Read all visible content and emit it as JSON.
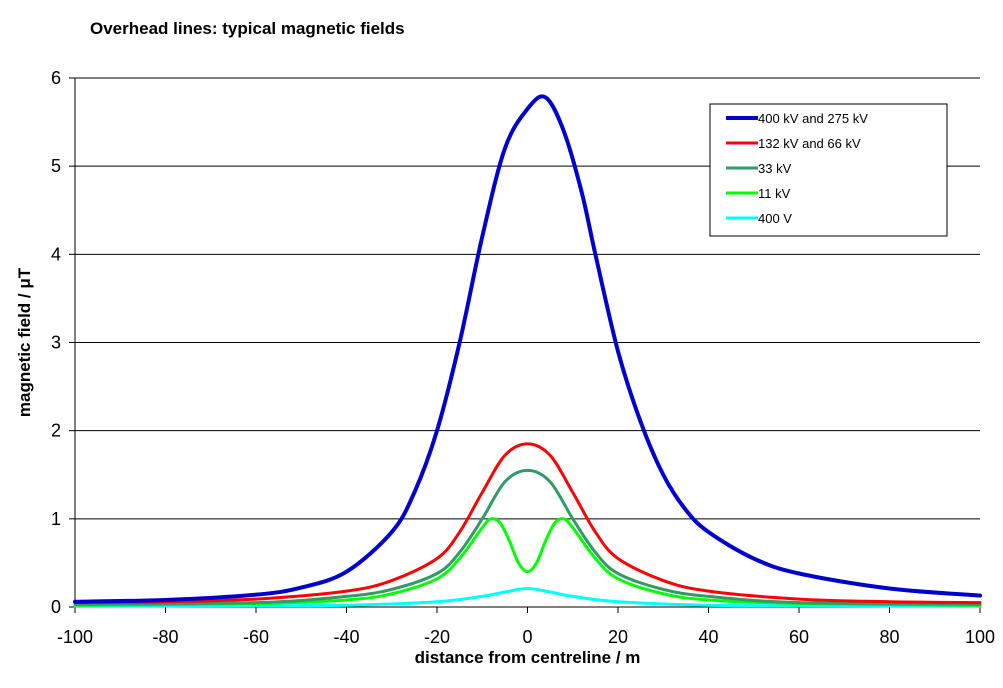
{
  "chart_data": {
    "type": "line",
    "title": "Overhead lines: typical magnetic fields",
    "xlabel": "distance from centreline / m",
    "ylabel": "magnetic field / μT",
    "xlim": [
      -100,
      100
    ],
    "ylim": [
      0,
      6
    ],
    "xticks": [
      -100,
      -80,
      -60,
      -40,
      -20,
      0,
      20,
      40,
      60,
      80,
      100
    ],
    "yticks": [
      0,
      1,
      2,
      3,
      4,
      5,
      6
    ],
    "grid": "horizontal",
    "legend_position": "top-right",
    "series": [
      {
        "name": "400 kV and 275 kV",
        "color": "#0000cc",
        "x": [
          -100,
          -80,
          -60,
          -50,
          -40,
          -30,
          -25,
          -20,
          -15,
          -10,
          -5,
          0,
          4,
          8,
          12,
          15,
          20,
          25,
          30,
          35,
          40,
          50,
          60,
          80,
          100
        ],
        "y": [
          0.06,
          0.08,
          0.14,
          0.22,
          0.4,
          0.85,
          1.3,
          2.0,
          3.0,
          4.2,
          5.2,
          5.65,
          5.78,
          5.4,
          4.7,
          4.0,
          2.9,
          2.1,
          1.5,
          1.1,
          0.85,
          0.55,
          0.38,
          0.21,
          0.13
        ]
      },
      {
        "name": "132 kV and 66 kV",
        "color": "#ff0000",
        "x": [
          -100,
          -80,
          -60,
          -40,
          -30,
          -20,
          -15,
          -10,
          -5,
          0,
          5,
          10,
          15,
          20,
          30,
          40,
          60,
          80,
          100
        ],
        "y": [
          0.05,
          0.06,
          0.09,
          0.18,
          0.3,
          0.55,
          0.85,
          1.3,
          1.72,
          1.85,
          1.72,
          1.3,
          0.85,
          0.55,
          0.3,
          0.18,
          0.09,
          0.06,
          0.05
        ]
      },
      {
        "name": "33 kV",
        "color": "#339966",
        "x": [
          -100,
          -60,
          -40,
          -30,
          -20,
          -15,
          -10,
          -5,
          0,
          5,
          10,
          15,
          20,
          30,
          40,
          60,
          100
        ],
        "y": [
          0.03,
          0.05,
          0.12,
          0.2,
          0.38,
          0.62,
          1.0,
          1.42,
          1.55,
          1.42,
          1.0,
          0.62,
          0.38,
          0.2,
          0.12,
          0.05,
          0.03
        ]
      },
      {
        "name": "11 kV",
        "color": "#00ff00",
        "x": [
          -100,
          -60,
          -40,
          -30,
          -20,
          -15,
          -10,
          -8,
          -6,
          -4,
          -2,
          0,
          2,
          4,
          6,
          8,
          10,
          15,
          20,
          30,
          40,
          60,
          100
        ],
        "y": [
          0.02,
          0.04,
          0.08,
          0.15,
          0.32,
          0.55,
          0.9,
          1.0,
          0.95,
          0.75,
          0.5,
          0.4,
          0.5,
          0.75,
          0.95,
          1.0,
          0.9,
          0.55,
          0.32,
          0.15,
          0.08,
          0.04,
          0.02
        ]
      },
      {
        "name": "400 V",
        "color": "#00ffff",
        "x": [
          -100,
          -60,
          -40,
          -20,
          -10,
          -5,
          0,
          5,
          10,
          20,
          40,
          60,
          100
        ],
        "y": [
          0.01,
          0.015,
          0.02,
          0.06,
          0.12,
          0.17,
          0.21,
          0.17,
          0.12,
          0.06,
          0.02,
          0.015,
          0.01
        ]
      }
    ]
  }
}
